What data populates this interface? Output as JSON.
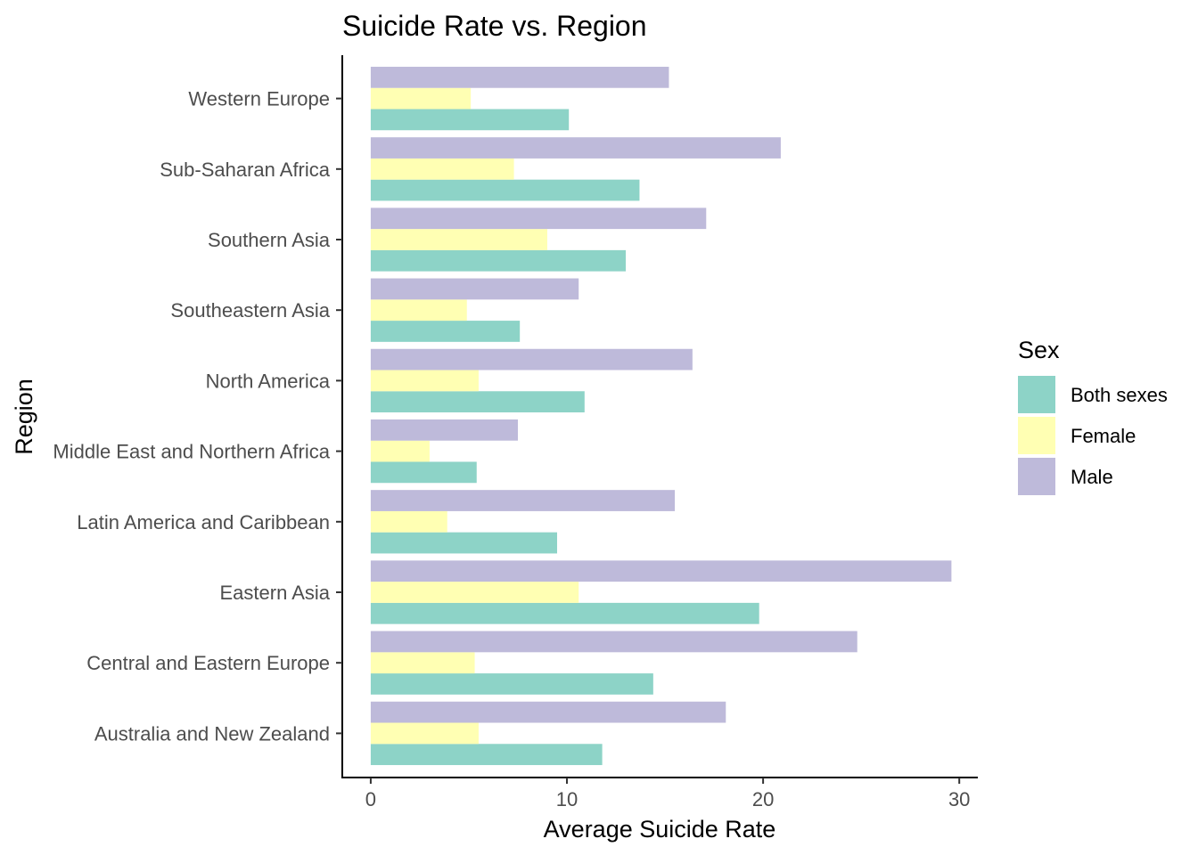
{
  "chart_data": {
    "type": "bar",
    "orientation": "horizontal",
    "title": "Suicide Rate vs. Region",
    "xlabel": "Average Suicide Rate",
    "ylabel": "Region",
    "xlim": [
      -1.45,
      30.9
    ],
    "x_ticks": [
      0,
      10,
      20,
      30
    ],
    "grid": false,
    "categories": [
      "Australia and New Zealand",
      "Central and Eastern Europe",
      "Eastern Asia",
      "Latin America and Caribbean",
      "Middle East and Northern Africa",
      "North America",
      "Southeastern Asia",
      "Southern Asia",
      "Sub-Saharan Africa",
      "Western Europe"
    ],
    "series": [
      {
        "name": "Both sexes",
        "color": "#8DD3C7",
        "values": [
          11.8,
          14.4,
          19.8,
          9.5,
          5.4,
          10.9,
          7.6,
          13.0,
          13.7,
          10.1
        ]
      },
      {
        "name": "Female",
        "color": "#FFFFB3",
        "values": [
          5.5,
          5.3,
          10.6,
          3.9,
          3.0,
          5.5,
          4.9,
          9.0,
          7.3,
          5.1
        ]
      },
      {
        "name": "Male",
        "color": "#BEBADA",
        "values": [
          18.1,
          24.8,
          29.6,
          15.5,
          7.5,
          16.4,
          10.6,
          17.1,
          20.9,
          15.2
        ]
      }
    ],
    "legend": {
      "title": "Sex",
      "position": "right",
      "entries": [
        "Both sexes",
        "Female",
        "Male"
      ]
    }
  }
}
